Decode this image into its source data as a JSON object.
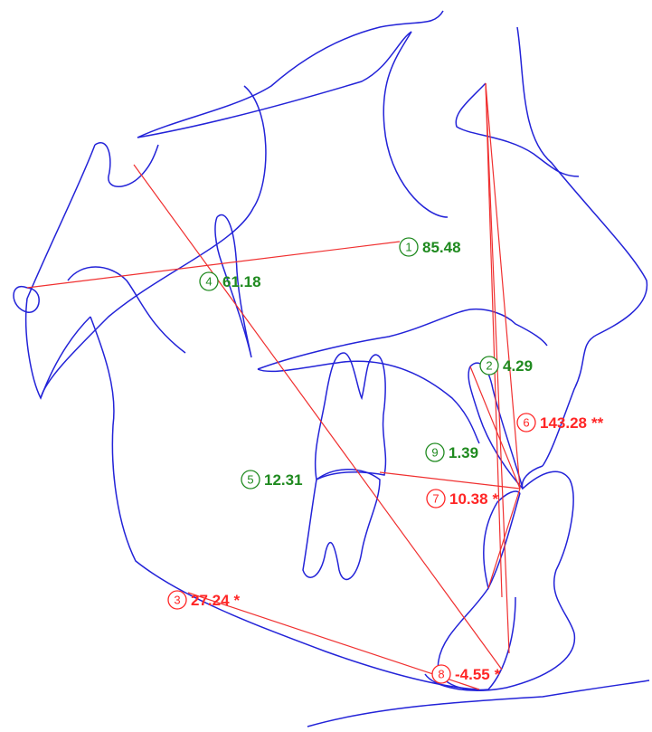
{
  "measurements": [
    {
      "number": "1",
      "value": "85.48",
      "color": "#1f8a1f"
    },
    {
      "number": "2",
      "value": "4.29",
      "color": "#1f8a1f"
    },
    {
      "number": "3",
      "value": "27.24",
      "flag": "*",
      "color": "#ff2626"
    },
    {
      "number": "4",
      "value": "61.18",
      "color": "#1f8a1f"
    },
    {
      "number": "5",
      "value": "12.31",
      "color": "#1f8a1f"
    },
    {
      "number": "6",
      "value": "143.28",
      "flag": "**",
      "color": "#ff2626"
    },
    {
      "number": "7",
      "value": "10.38",
      "flag": "*",
      "color": "#ff2626"
    },
    {
      "number": "8",
      "value": "-4.55",
      "flag": "*",
      "color": "#ff2626"
    },
    {
      "number": "9",
      "value": "1.39",
      "color": "#1f8a1f"
    }
  ]
}
